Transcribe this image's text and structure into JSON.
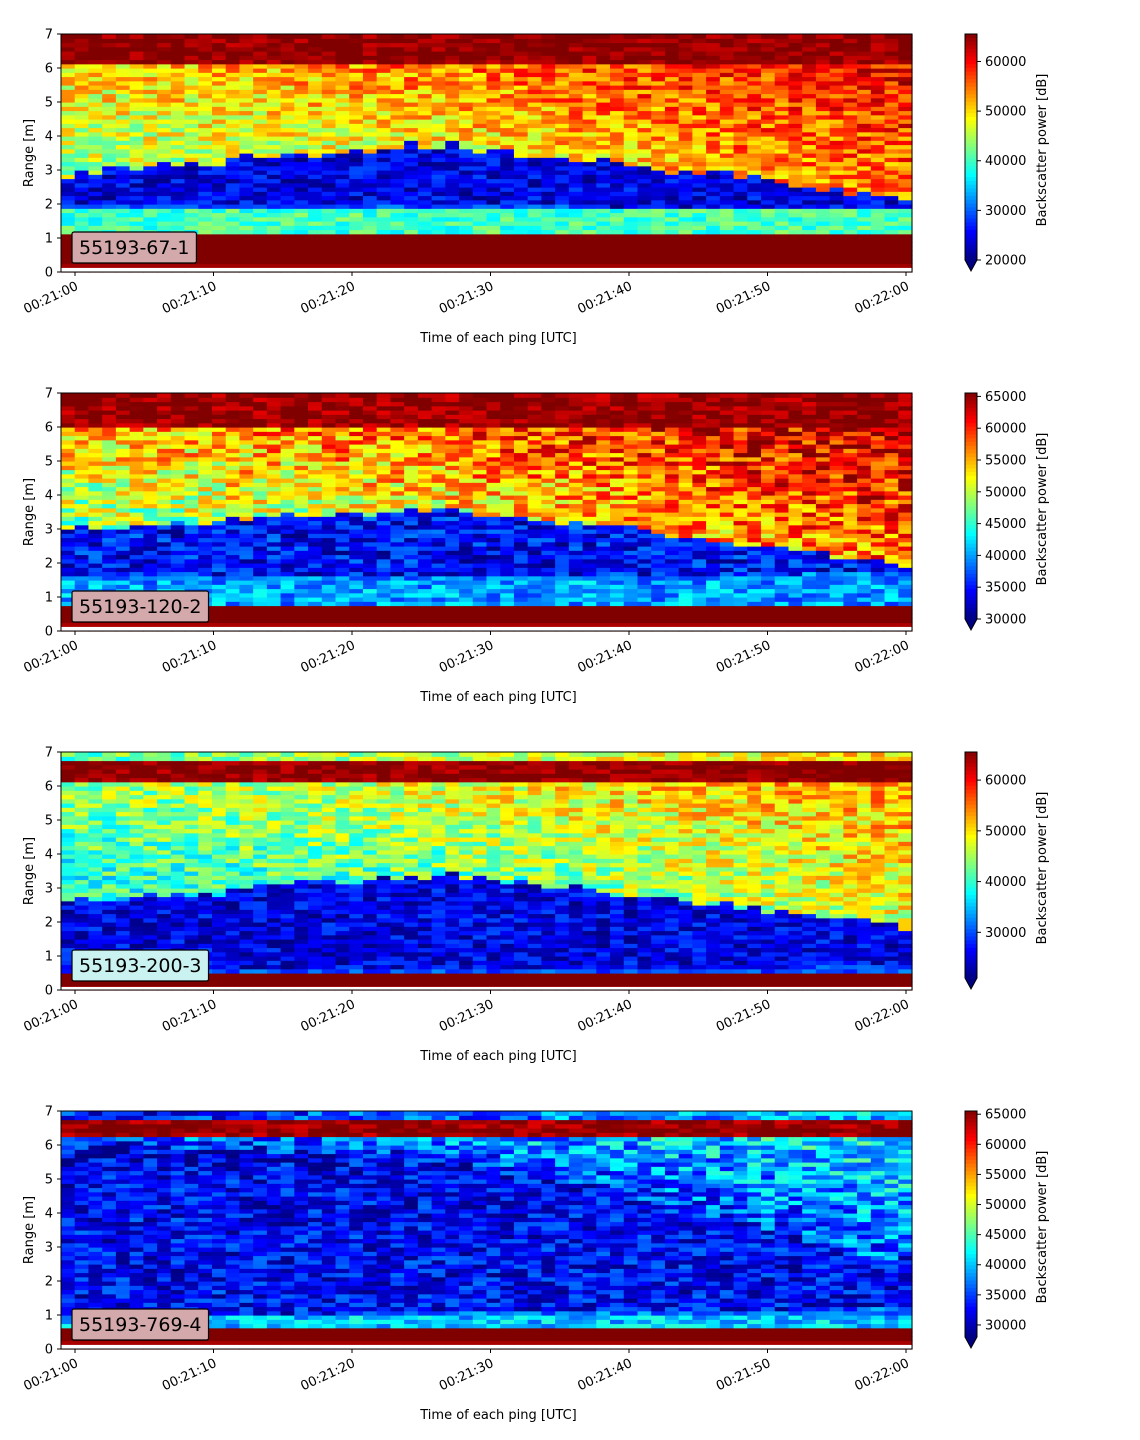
{
  "chart_data": [
    {
      "type": "heatmap",
      "label": "55193-67-1",
      "label_color": "#d4a9ab",
      "xlabel": "Time of each ping [UTC]",
      "ylabel": "Range [m]",
      "ylim": [
        0,
        7
      ],
      "yticks": [
        "0",
        "1",
        "2",
        "3",
        "4",
        "5",
        "6",
        "7"
      ],
      "xticks": [
        "00:21:00",
        "00:21:10",
        "00:21:20",
        "00:21:30",
        "00:21:40",
        "00:21:50",
        "00:22:00"
      ],
      "colorbar": {
        "label": "Backscatter power [dB]",
        "min": 20000,
        "max": 65535,
        "ticks": [
          "20000",
          "30000",
          "40000",
          "50000",
          "60000"
        ],
        "extend": "min",
        "colormap": "jet"
      },
      "profile": {
        "bottom_edge": 0.2,
        "high_band": [
          0.2,
          1.1
        ],
        "light_band_top": 1.9,
        "dark_layer_bottom_start": 2.0,
        "dark_layer_bottom_end": 1.9,
        "dark_layer_top_start": 2.9,
        "dark_layer_top_peak": 3.8,
        "dark_layer_top_end": 2.2,
        "upper_level_start": 48000,
        "upper_level_end": 58000,
        "top_band": [
          6.1,
          7.0
        ]
      }
    },
    {
      "type": "heatmap",
      "label": "55193-120-2",
      "label_color": "#d4a9ab",
      "xlabel": "Time of each ping [UTC]",
      "ylabel": "Range [m]",
      "ylim": [
        0,
        7
      ],
      "yticks": [
        "0",
        "1",
        "2",
        "3",
        "4",
        "5",
        "6",
        "7"
      ],
      "xticks": [
        "00:21:00",
        "00:21:10",
        "00:21:20",
        "00:21:30",
        "00:21:40",
        "00:21:50",
        "00:22:00"
      ],
      "colorbar": {
        "label": "Backscatter power [dB]",
        "min": 30000,
        "max": 65535,
        "ticks": [
          "30000",
          "35000",
          "40000",
          "45000",
          "50000",
          "55000",
          "60000",
          "65000"
        ],
        "extend": "min",
        "colormap": "jet"
      },
      "profile": {
        "bottom_edge": 0.2,
        "high_band": [
          0.2,
          0.8
        ],
        "light_band_top": 1.5,
        "dark_layer_bottom_start": 1.6,
        "dark_layer_bottom_end": 1.7,
        "dark_layer_top_start": 3.0,
        "dark_layer_top_peak": 3.6,
        "dark_layer_top_end": 2.0,
        "upper_level_start": 52000,
        "upper_level_end": 61000,
        "top_band": [
          6.0,
          7.0
        ]
      }
    },
    {
      "type": "heatmap",
      "label": "55193-200-3",
      "label_color": "#c9f2f0",
      "xlabel": "Time of each ping [UTC]",
      "ylabel": "Range [m]",
      "ylim": [
        0,
        7
      ],
      "yticks": [
        "0",
        "1",
        "2",
        "3",
        "4",
        "5",
        "6",
        "7"
      ],
      "xticks": [
        "00:21:00",
        "00:21:10",
        "00:21:20",
        "00:21:30",
        "00:21:40",
        "00:21:50",
        "00:22:00"
      ],
      "colorbar": {
        "label": "Backscatter power [dB]",
        "min": 21000,
        "max": 65535,
        "ticks": [
          "30000",
          "40000",
          "50000",
          "60000"
        ],
        "extend": "min",
        "colormap": "jet"
      },
      "profile": {
        "bottom_edge": 0.15,
        "high_band": [
          0.15,
          0.45
        ],
        "light_band_top": 0.55,
        "dark_layer_bottom_start": 0.6,
        "dark_layer_bottom_end": 0.7,
        "dark_layer_top_start": 2.6,
        "dark_layer_top_peak": 3.4,
        "dark_layer_top_end": 1.9,
        "upper_level_start": 42000,
        "upper_level_end": 51000,
        "top_band": [
          6.1,
          6.7
        ]
      }
    },
    {
      "type": "heatmap",
      "label": "55193-769-4",
      "label_color": "#d4a9ab",
      "xlabel": "Time of each ping [UTC]",
      "ylabel": "Range [m]",
      "ylim": [
        0,
        7
      ],
      "yticks": [
        "0",
        "1",
        "2",
        "3",
        "4",
        "5",
        "6",
        "7"
      ],
      "xticks": [
        "00:21:00",
        "00:21:10",
        "00:21:20",
        "00:21:30",
        "00:21:40",
        "00:21:50",
        "00:22:00"
      ],
      "colorbar": {
        "label": "Backscatter power [dB]",
        "min": 28000,
        "max": 65535,
        "ticks": [
          "30000",
          "35000",
          "40000",
          "45000",
          "50000",
          "55000",
          "60000",
          "65000"
        ],
        "extend": "min",
        "colormap": "jet"
      },
      "profile": {
        "bottom_edge": 0.2,
        "high_band": [
          0.2,
          0.65
        ],
        "light_band_top": 1.0,
        "dark_layer_bottom_start": 1.0,
        "dark_layer_bottom_end": 1.2,
        "dark_layer_top_start": 5.5,
        "dark_layer_top_peak": 5.5,
        "dark_layer_top_end": 2.6,
        "upper_level_start": 33000,
        "upper_level_end": 40000,
        "top_band": [
          6.2,
          6.7
        ]
      }
    }
  ]
}
